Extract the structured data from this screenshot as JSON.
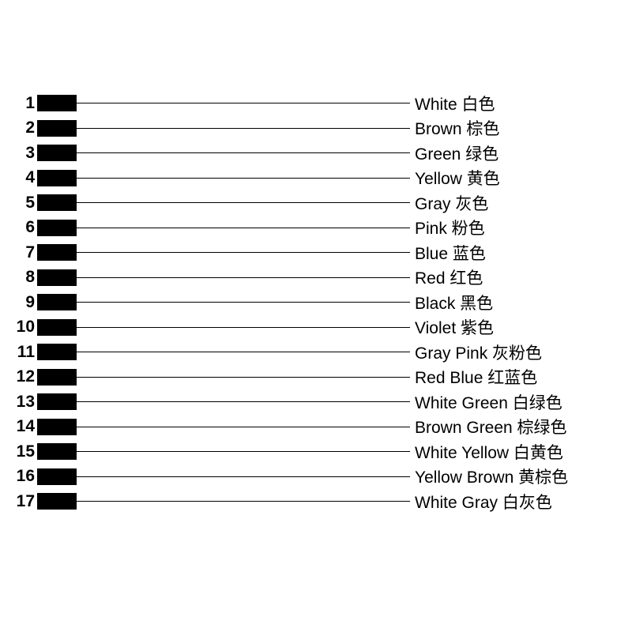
{
  "diagram": {
    "type": "legend-list",
    "background_color": "#ffffff",
    "text_color": "#000000",
    "swatch_color": "#000000",
    "line_color": "#000000",
    "number_fontsize": 21,
    "number_fontweight": 700,
    "label_fontsize": 21,
    "row_height": 31.5,
    "swatch_width": 50,
    "swatch_height": 21,
    "line_thickness": 1,
    "label_column_x": 519,
    "rows": [
      {
        "n": "1",
        "label": "White 白色"
      },
      {
        "n": "2",
        "label": "Brown 棕色"
      },
      {
        "n": "3",
        "label": "Green 绿色"
      },
      {
        "n": "4",
        "label": "Yellow 黄色"
      },
      {
        "n": "5",
        "label": "Gray 灰色"
      },
      {
        "n": "6",
        "label": "Pink 粉色"
      },
      {
        "n": "7",
        "label": "Blue 蓝色"
      },
      {
        "n": "8",
        "label": "Red 红色"
      },
      {
        "n": "9",
        "label": "Black 黑色"
      },
      {
        "n": "10",
        "label": "Violet 紫色"
      },
      {
        "n": "11",
        "label": "Gray Pink 灰粉色"
      },
      {
        "n": "12",
        "label": "Red Blue 红蓝色"
      },
      {
        "n": "13",
        "label": "White Green 白绿色"
      },
      {
        "n": "14",
        "label": "Brown Green 棕绿色"
      },
      {
        "n": "15",
        "label": "White Yellow 白黄色"
      },
      {
        "n": "16",
        "label": "Yellow Brown 黄棕色"
      },
      {
        "n": "17",
        "label": "White Gray 白灰色"
      }
    ]
  }
}
